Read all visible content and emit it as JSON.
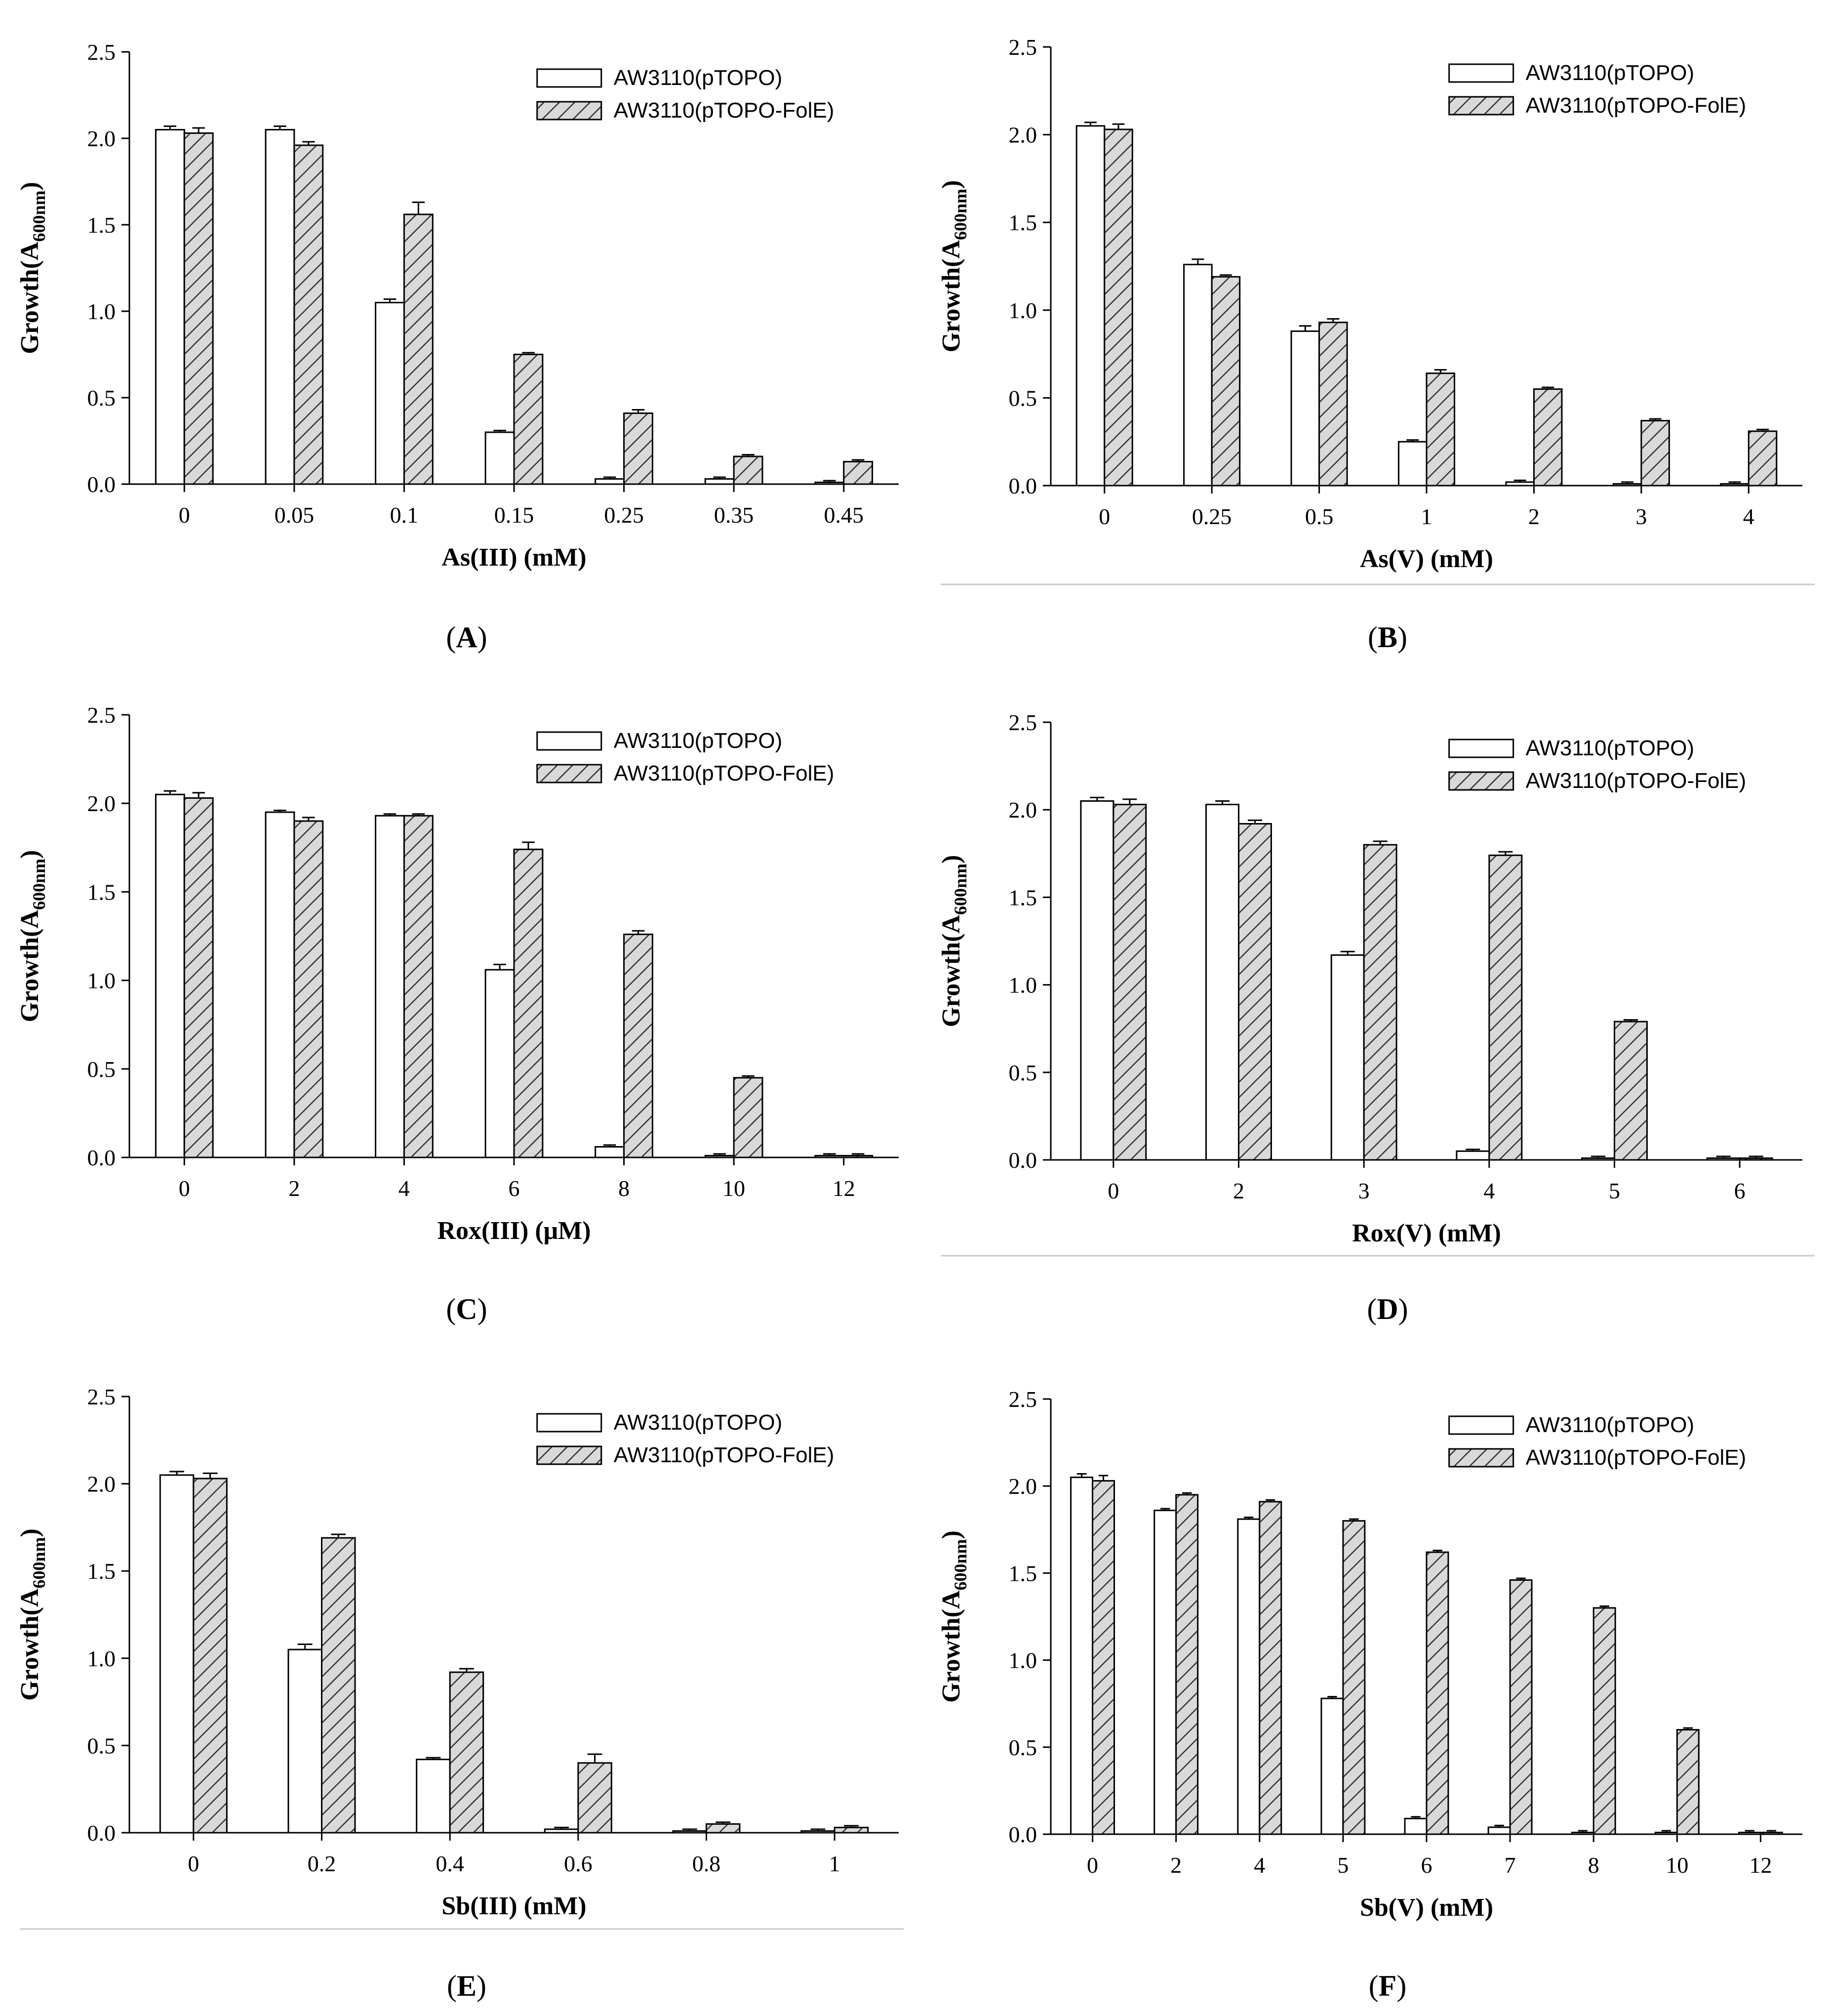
{
  "figure": {
    "legend": {
      "series_a": "AW3110(pTOPO)",
      "series_b": "AW3110(pTOPO-FolE)"
    },
    "ylabel_main": "Growth(A",
    "ylabel_sub": "600nm",
    "ylabel_close": ")",
    "colors": {
      "series_a_fill": "#ffffff",
      "series_b_fill": "#d9d9d9",
      "hatch": "#333333"
    }
  },
  "chart_data": [
    {
      "id": "A",
      "type": "bar",
      "panel_label": "A",
      "xlabel": "As(III) (mM)",
      "ylabel": "Growth(A600nm)",
      "ylim": [
        0,
        2.5
      ],
      "yticks": [
        "0.0",
        "0.5",
        "1.0",
        "1.5",
        "2.0",
        "2.5"
      ],
      "categories": [
        "0",
        "0.05",
        "0.1",
        "0.15",
        "0.25",
        "0.35",
        "0.45"
      ],
      "series": [
        {
          "name": "AW3110(pTOPO)",
          "values": [
            2.05,
            2.05,
            1.05,
            0.3,
            0.03,
            0.03,
            0.01
          ],
          "errors": [
            0.02,
            0.02,
            0.02,
            0.01,
            0.01,
            0.01,
            0.01
          ]
        },
        {
          "name": "AW3110(pTOPO-FolE)",
          "values": [
            2.03,
            1.96,
            1.56,
            0.75,
            0.41,
            0.16,
            0.13
          ],
          "errors": [
            0.03,
            0.02,
            0.07,
            0.01,
            0.02,
            0.01,
            0.01
          ]
        }
      ]
    },
    {
      "id": "B",
      "type": "bar",
      "panel_label": "B",
      "xlabel": "As(V) (mM)",
      "ylabel": "Growth(A600nm)",
      "ylim": [
        0,
        2.5
      ],
      "yticks": [
        "0.0",
        "0.5",
        "1.0",
        "1.5",
        "2.0",
        "2.5"
      ],
      "categories": [
        "0",
        "0.25",
        "0.5",
        "1",
        "2",
        "3",
        "4"
      ],
      "series": [
        {
          "name": "AW3110(pTOPO)",
          "values": [
            2.05,
            1.26,
            0.88,
            0.25,
            0.02,
            0.01,
            0.01
          ],
          "errors": [
            0.02,
            0.03,
            0.03,
            0.01,
            0.01,
            0.01,
            0.01
          ]
        },
        {
          "name": "AW3110(pTOPO-FolE)",
          "values": [
            2.03,
            1.19,
            0.93,
            0.64,
            0.55,
            0.37,
            0.31
          ],
          "errors": [
            0.03,
            0.01,
            0.02,
            0.02,
            0.01,
            0.01,
            0.01
          ]
        }
      ]
    },
    {
      "id": "C",
      "type": "bar",
      "panel_label": "C",
      "xlabel": "Rox(III) (μM)",
      "ylabel": "Growth(A600nm)",
      "ylim": [
        0,
        2.5
      ],
      "yticks": [
        "0.0",
        "0.5",
        "1.0",
        "1.5",
        "2.0",
        "2.5"
      ],
      "categories": [
        "0",
        "2",
        "4",
        "6",
        "8",
        "10",
        "12"
      ],
      "series": [
        {
          "name": "AW3110(pTOPO)",
          "values": [
            2.05,
            1.95,
            1.93,
            1.06,
            0.06,
            0.01,
            0.01
          ],
          "errors": [
            0.02,
            0.01,
            0.01,
            0.03,
            0.01,
            0.01,
            0.01
          ]
        },
        {
          "name": "AW3110(pTOPO-FolE)",
          "values": [
            2.03,
            1.9,
            1.93,
            1.74,
            1.26,
            0.45,
            0.01
          ],
          "errors": [
            0.03,
            0.02,
            0.01,
            0.04,
            0.02,
            0.01,
            0.01
          ]
        }
      ]
    },
    {
      "id": "D",
      "type": "bar",
      "panel_label": "D",
      "xlabel": "Rox(V) (mM)",
      "ylabel": "Growth(A600nm)",
      "ylim": [
        0,
        2.5
      ],
      "yticks": [
        "0.0",
        "0.5",
        "1.0",
        "1.5",
        "2.0",
        "2.5"
      ],
      "categories": [
        "0",
        "2",
        "3",
        "4",
        "5",
        "6"
      ],
      "series": [
        {
          "name": "AW3110(pTOPO)",
          "values": [
            2.05,
            2.03,
            1.17,
            0.05,
            0.01,
            0.01
          ],
          "errors": [
            0.02,
            0.02,
            0.02,
            0.01,
            0.01,
            0.01
          ]
        },
        {
          "name": "AW3110(pTOPO-FolE)",
          "values": [
            2.03,
            1.92,
            1.8,
            1.74,
            0.79,
            0.01
          ],
          "errors": [
            0.03,
            0.02,
            0.02,
            0.02,
            0.01,
            0.01
          ]
        }
      ]
    },
    {
      "id": "E",
      "type": "bar",
      "panel_label": "E",
      "xlabel": "Sb(III) (mM)",
      "ylabel": "Growth(A600nm)",
      "ylim": [
        0,
        2.5
      ],
      "yticks": [
        "0.0",
        "0.5",
        "1.0",
        "1.5",
        "2.0",
        "2.5"
      ],
      "categories": [
        "0",
        "0.2",
        "0.4",
        "0.6",
        "0.8",
        "1"
      ],
      "series": [
        {
          "name": "AW3110(pTOPO)",
          "values": [
            2.05,
            1.05,
            0.42,
            0.02,
            0.01,
            0.01
          ],
          "errors": [
            0.02,
            0.03,
            0.01,
            0.01,
            0.01,
            0.01
          ]
        },
        {
          "name": "AW3110(pTOPO-FolE)",
          "values": [
            2.03,
            1.69,
            0.92,
            0.4,
            0.05,
            0.03
          ],
          "errors": [
            0.03,
            0.02,
            0.02,
            0.05,
            0.01,
            0.01
          ]
        }
      ]
    },
    {
      "id": "F",
      "type": "bar",
      "panel_label": "F",
      "xlabel": "Sb(V) (mM)",
      "ylabel": "Growth(A600nm)",
      "ylim": [
        0,
        2.5
      ],
      "yticks": [
        "0.0",
        "0.5",
        "1.0",
        "1.5",
        "2.0",
        "2.5"
      ],
      "categories": [
        "0",
        "2",
        "4",
        "5",
        "6",
        "7",
        "8",
        "10",
        "12"
      ],
      "series": [
        {
          "name": "AW3110(pTOPO)",
          "values": [
            2.05,
            1.86,
            1.81,
            0.78,
            0.09,
            0.04,
            0.01,
            0.01,
            0.01
          ],
          "errors": [
            0.02,
            0.01,
            0.01,
            0.01,
            0.01,
            0.01,
            0.01,
            0.01,
            0.01
          ]
        },
        {
          "name": "AW3110(pTOPO-FolE)",
          "values": [
            2.03,
            1.95,
            1.91,
            1.8,
            1.62,
            1.46,
            1.3,
            0.6,
            0.01
          ],
          "errors": [
            0.03,
            0.01,
            0.01,
            0.01,
            0.01,
            0.01,
            0.01,
            0.01,
            0.01
          ]
        }
      ]
    }
  ]
}
